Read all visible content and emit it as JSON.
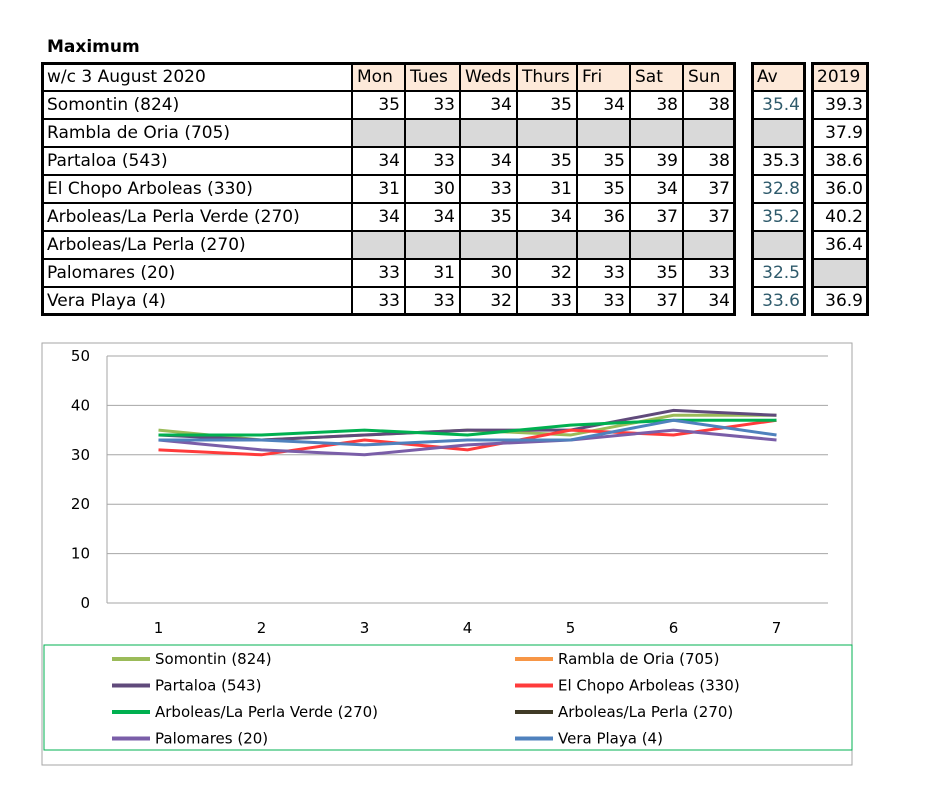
{
  "title": "Maximum",
  "table": {
    "header": [
      "w/c 3 August  2020",
      "Mon",
      "Tues",
      "Weds",
      "Thurs",
      "Fri",
      "Sat",
      "Sun",
      "Av",
      "2019"
    ],
    "rows": [
      [
        "Somontin (824)",
        35,
        33,
        34,
        35,
        34,
        38,
        38,
        35.4,
        39.3
      ],
      [
        "Rambla de Oria (705)",
        null,
        null,
        null,
        null,
        null,
        null,
        null,
        null,
        37.9
      ],
      [
        "Partaloa (543)",
        34,
        33,
        34,
        35,
        35,
        39,
        38,
        35.3,
        38.6
      ],
      [
        "El Chopo  Arboleas (330)",
        31,
        30,
        33,
        31,
        35,
        34,
        37,
        32.8,
        "36.0"
      ],
      [
        "Arboleas/La Perla Verde (270)",
        34,
        34,
        35,
        34,
        36,
        37,
        37,
        35.2,
        40.2
      ],
      [
        "Arboleas/La Perla (270)",
        null,
        null,
        null,
        null,
        null,
        null,
        null,
        null,
        36.4
      ],
      [
        "Palomares (20)",
        33,
        31,
        30,
        32,
        33,
        35,
        33,
        32.5,
        null
      ],
      [
        "Vera Playa (4)",
        33,
        33,
        32,
        33,
        33,
        37,
        34,
        33.6,
        36.9
      ]
    ]
  },
  "chart": {
    "type": "line",
    "categories": [
      1,
      2,
      3,
      4,
      5,
      6,
      7
    ],
    "ylim": [
      0,
      50
    ],
    "yticks": [
      0,
      10,
      20,
      30,
      40,
      50
    ],
    "grid": true,
    "series": [
      {
        "name": "Somontin (824)",
        "color": "#9bbb59",
        "values": [
          35,
          33,
          34,
          35,
          34,
          38,
          38
        ]
      },
      {
        "name": "Rambla de Oria (705)",
        "color": "#f79646",
        "values": [
          null,
          null,
          null,
          null,
          null,
          null,
          null
        ]
      },
      {
        "name": "Partaloa (543)",
        "color": "#604a7b",
        "values": [
          34,
          33,
          34,
          35,
          35,
          39,
          38
        ]
      },
      {
        "name": "El Chopo  Arboleas (330)",
        "color": "#ff3b3b",
        "values": [
          31,
          30,
          33,
          31,
          35,
          34,
          37
        ]
      },
      {
        "name": "Arboleas/La Perla Verde (270)",
        "color": "#00b050",
        "values": [
          34,
          34,
          35,
          34,
          36,
          37,
          37
        ]
      },
      {
        "name": "Arboleas/La Perla (270)",
        "color": "#403a26",
        "values": [
          null,
          null,
          null,
          null,
          null,
          null,
          null
        ]
      },
      {
        "name": "Palomares (20)",
        "color": "#7a5ea8",
        "values": [
          33,
          31,
          30,
          32,
          33,
          35,
          33
        ]
      },
      {
        "name": "Vera Playa (4)",
        "color": "#4f81bd",
        "values": [
          33,
          33,
          32,
          33,
          33,
          37,
          34
        ]
      }
    ]
  }
}
